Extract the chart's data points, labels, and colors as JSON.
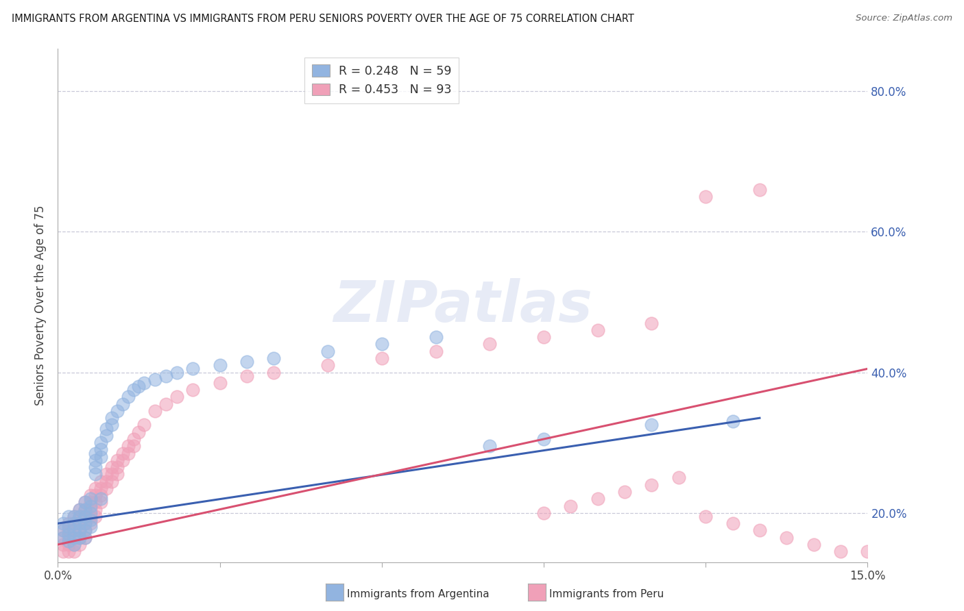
{
  "title": "IMMIGRANTS FROM ARGENTINA VS IMMIGRANTS FROM PERU SENIORS POVERTY OVER THE AGE OF 75 CORRELATION CHART",
  "source": "Source: ZipAtlas.com",
  "ylabel": "Seniors Poverty Over the Age of 75",
  "xlim": [
    0.0,
    0.15
  ],
  "ylim": [
    0.13,
    0.86
  ],
  "yticks": [
    0.2,
    0.4,
    0.6,
    0.8
  ],
  "yticklabels": [
    "20.0%",
    "40.0%",
    "60.0%",
    "80.0%"
  ],
  "argentina_color": "#92b4e0",
  "peru_color": "#f0a0b8",
  "argentina_line_color": "#3a5fb0",
  "peru_line_color": "#d85070",
  "watermark_text": "ZIPatlas",
  "background_color": "#ffffff",
  "grid_color": "#c8c8d8",
  "argentina_scatter": [
    [
      0.001,
      0.185
    ],
    [
      0.001,
      0.175
    ],
    [
      0.001,
      0.165
    ],
    [
      0.002,
      0.195
    ],
    [
      0.002,
      0.18
    ],
    [
      0.002,
      0.17
    ],
    [
      0.002,
      0.16
    ],
    [
      0.003,
      0.195
    ],
    [
      0.003,
      0.185
    ],
    [
      0.003,
      0.175
    ],
    [
      0.003,
      0.165
    ],
    [
      0.003,
      0.155
    ],
    [
      0.004,
      0.205
    ],
    [
      0.004,
      0.195
    ],
    [
      0.004,
      0.185
    ],
    [
      0.004,
      0.175
    ],
    [
      0.004,
      0.165
    ],
    [
      0.005,
      0.215
    ],
    [
      0.005,
      0.205
    ],
    [
      0.005,
      0.195
    ],
    [
      0.005,
      0.185
    ],
    [
      0.005,
      0.175
    ],
    [
      0.005,
      0.165
    ],
    [
      0.006,
      0.22
    ],
    [
      0.006,
      0.21
    ],
    [
      0.006,
      0.2
    ],
    [
      0.006,
      0.19
    ],
    [
      0.006,
      0.18
    ],
    [
      0.007,
      0.285
    ],
    [
      0.007,
      0.275
    ],
    [
      0.007,
      0.265
    ],
    [
      0.007,
      0.255
    ],
    [
      0.008,
      0.3
    ],
    [
      0.008,
      0.29
    ],
    [
      0.008,
      0.28
    ],
    [
      0.008,
      0.22
    ],
    [
      0.009,
      0.32
    ],
    [
      0.009,
      0.31
    ],
    [
      0.01,
      0.335
    ],
    [
      0.01,
      0.325
    ],
    [
      0.011,
      0.345
    ],
    [
      0.012,
      0.355
    ],
    [
      0.013,
      0.365
    ],
    [
      0.014,
      0.375
    ],
    [
      0.015,
      0.38
    ],
    [
      0.016,
      0.385
    ],
    [
      0.018,
      0.39
    ],
    [
      0.02,
      0.395
    ],
    [
      0.022,
      0.4
    ],
    [
      0.025,
      0.405
    ],
    [
      0.03,
      0.41
    ],
    [
      0.035,
      0.415
    ],
    [
      0.04,
      0.42
    ],
    [
      0.05,
      0.43
    ],
    [
      0.06,
      0.44
    ],
    [
      0.07,
      0.45
    ],
    [
      0.08,
      0.295
    ],
    [
      0.09,
      0.305
    ],
    [
      0.11,
      0.325
    ],
    [
      0.125,
      0.33
    ]
  ],
  "peru_scatter": [
    [
      0.001,
      0.175
    ],
    [
      0.001,
      0.165
    ],
    [
      0.001,
      0.155
    ],
    [
      0.001,
      0.145
    ],
    [
      0.002,
      0.185
    ],
    [
      0.002,
      0.175
    ],
    [
      0.002,
      0.165
    ],
    [
      0.002,
      0.155
    ],
    [
      0.002,
      0.145
    ],
    [
      0.003,
      0.195
    ],
    [
      0.003,
      0.185
    ],
    [
      0.003,
      0.175
    ],
    [
      0.003,
      0.165
    ],
    [
      0.003,
      0.155
    ],
    [
      0.003,
      0.145
    ],
    [
      0.004,
      0.205
    ],
    [
      0.004,
      0.195
    ],
    [
      0.004,
      0.185
    ],
    [
      0.004,
      0.175
    ],
    [
      0.004,
      0.165
    ],
    [
      0.004,
      0.155
    ],
    [
      0.005,
      0.215
    ],
    [
      0.005,
      0.205
    ],
    [
      0.005,
      0.195
    ],
    [
      0.005,
      0.185
    ],
    [
      0.005,
      0.175
    ],
    [
      0.005,
      0.165
    ],
    [
      0.006,
      0.225
    ],
    [
      0.006,
      0.215
    ],
    [
      0.006,
      0.205
    ],
    [
      0.006,
      0.195
    ],
    [
      0.006,
      0.185
    ],
    [
      0.007,
      0.235
    ],
    [
      0.007,
      0.225
    ],
    [
      0.007,
      0.215
    ],
    [
      0.007,
      0.205
    ],
    [
      0.007,
      0.195
    ],
    [
      0.008,
      0.245
    ],
    [
      0.008,
      0.235
    ],
    [
      0.008,
      0.225
    ],
    [
      0.008,
      0.215
    ],
    [
      0.009,
      0.255
    ],
    [
      0.009,
      0.245
    ],
    [
      0.009,
      0.235
    ],
    [
      0.01,
      0.265
    ],
    [
      0.01,
      0.255
    ],
    [
      0.01,
      0.245
    ],
    [
      0.011,
      0.275
    ],
    [
      0.011,
      0.265
    ],
    [
      0.011,
      0.255
    ],
    [
      0.012,
      0.285
    ],
    [
      0.012,
      0.275
    ],
    [
      0.013,
      0.295
    ],
    [
      0.013,
      0.285
    ],
    [
      0.014,
      0.305
    ],
    [
      0.014,
      0.295
    ],
    [
      0.015,
      0.315
    ],
    [
      0.016,
      0.325
    ],
    [
      0.018,
      0.345
    ],
    [
      0.02,
      0.355
    ],
    [
      0.022,
      0.365
    ],
    [
      0.025,
      0.375
    ],
    [
      0.03,
      0.385
    ],
    [
      0.035,
      0.395
    ],
    [
      0.04,
      0.4
    ],
    [
      0.05,
      0.41
    ],
    [
      0.06,
      0.42
    ],
    [
      0.07,
      0.43
    ],
    [
      0.08,
      0.44
    ],
    [
      0.09,
      0.45
    ],
    [
      0.1,
      0.46
    ],
    [
      0.11,
      0.47
    ],
    [
      0.12,
      0.65
    ],
    [
      0.13,
      0.66
    ],
    [
      0.09,
      0.2
    ],
    [
      0.095,
      0.21
    ],
    [
      0.1,
      0.22
    ],
    [
      0.105,
      0.23
    ],
    [
      0.11,
      0.24
    ],
    [
      0.115,
      0.25
    ],
    [
      0.12,
      0.195
    ],
    [
      0.125,
      0.185
    ],
    [
      0.13,
      0.175
    ],
    [
      0.135,
      0.165
    ],
    [
      0.14,
      0.155
    ],
    [
      0.145,
      0.145
    ],
    [
      0.15,
      0.145
    ]
  ],
  "arg_line_x": [
    0.0,
    0.13
  ],
  "arg_line_y": [
    0.185,
    0.335
  ],
  "peru_line_x": [
    0.0,
    0.15
  ],
  "peru_line_y": [
    0.155,
    0.405
  ]
}
